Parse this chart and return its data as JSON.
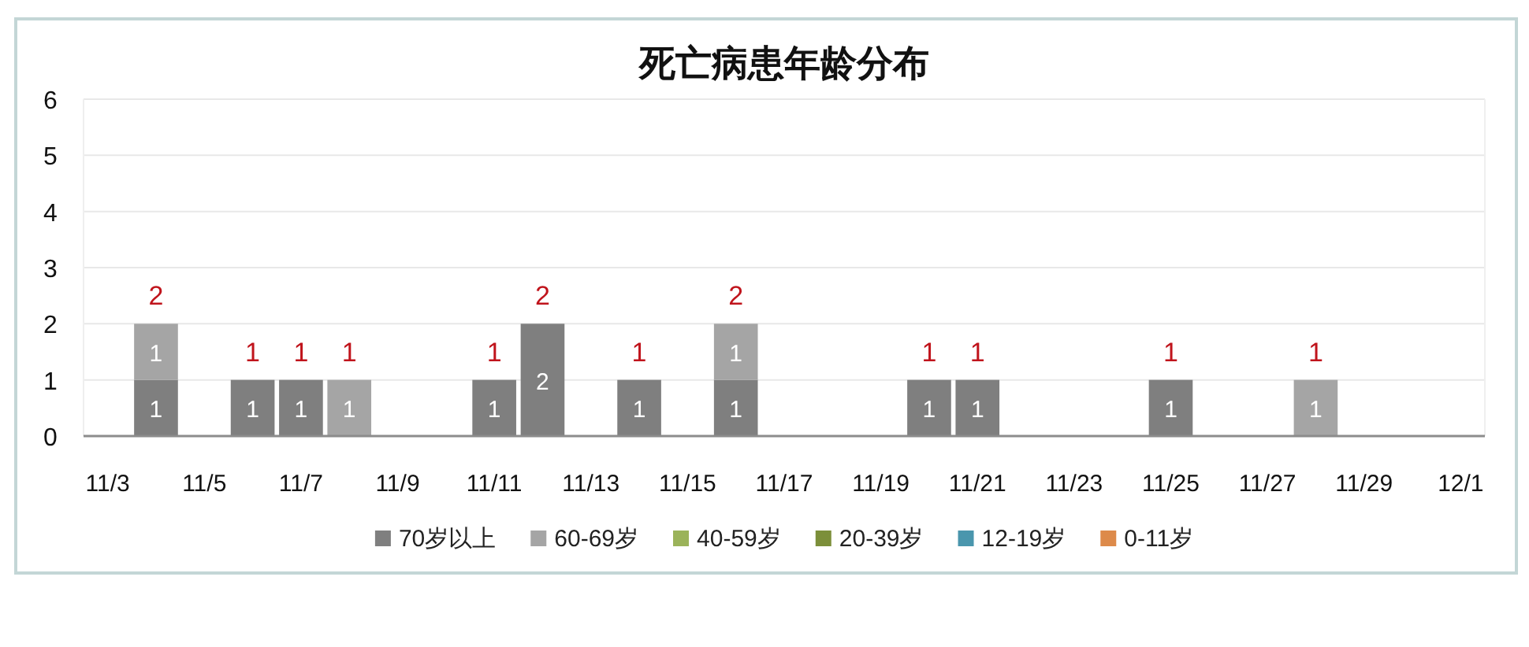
{
  "chart_data": {
    "type": "bar",
    "title": "死亡病患年龄分布",
    "categories": [
      "11/3",
      null,
      "11/5",
      null,
      "11/7",
      null,
      "11/9",
      null,
      "11/11",
      null,
      "11/13",
      null,
      "11/15",
      null,
      "11/17",
      null,
      "11/19",
      null,
      "11/21",
      null,
      "11/23",
      null,
      "11/25",
      null,
      "11/27",
      null,
      "11/29",
      null,
      "12/1"
    ],
    "series": [
      {
        "name": "70岁以上",
        "color": "#7f7f7f",
        "values": [
          null,
          1,
          null,
          1,
          1,
          null,
          null,
          null,
          1,
          2,
          null,
          1,
          null,
          1,
          null,
          null,
          null,
          1,
          1,
          null,
          null,
          null,
          1,
          null,
          null,
          null,
          null,
          null,
          null
        ]
      },
      {
        "name": "60-69岁",
        "color": "#a5a5a5",
        "values": [
          null,
          1,
          null,
          null,
          null,
          1,
          null,
          null,
          null,
          null,
          null,
          null,
          null,
          1,
          null,
          null,
          null,
          null,
          null,
          null,
          null,
          null,
          null,
          null,
          null,
          1,
          null,
          null,
          null
        ]
      },
      {
        "name": "40-59岁",
        "color": "#9bb35a",
        "values": [
          null,
          null,
          null,
          null,
          null,
          null,
          null,
          null,
          null,
          null,
          null,
          null,
          null,
          null,
          null,
          null,
          null,
          null,
          null,
          null,
          null,
          null,
          null,
          null,
          null,
          null,
          null,
          null,
          null
        ]
      },
      {
        "name": "20-39岁",
        "color": "#7c8f3a",
        "values": [
          null,
          null,
          null,
          null,
          null,
          null,
          null,
          null,
          null,
          null,
          null,
          null,
          null,
          null,
          null,
          null,
          null,
          null,
          null,
          null,
          null,
          null,
          null,
          null,
          null,
          null,
          null,
          null,
          null
        ]
      },
      {
        "name": "12-19岁",
        "color": "#4a96ad",
        "values": [
          null,
          null,
          null,
          null,
          null,
          null,
          null,
          null,
          null,
          null,
          null,
          null,
          null,
          null,
          null,
          null,
          null,
          null,
          null,
          null,
          null,
          null,
          null,
          null,
          null,
          null,
          null,
          null,
          null
        ]
      },
      {
        "name": "0-11岁",
        "color": "#dd8a4a",
        "values": [
          null,
          null,
          null,
          null,
          null,
          null,
          null,
          null,
          null,
          null,
          null,
          null,
          null,
          null,
          null,
          null,
          null,
          null,
          null,
          null,
          null,
          null,
          null,
          null,
          null,
          null,
          null,
          null,
          null
        ]
      }
    ],
    "stacked": true,
    "totals": [
      null,
      "2",
      null,
      "1",
      "1",
      "1",
      null,
      null,
      "1",
      "2",
      null,
      "1",
      null,
      "2",
      null,
      null,
      null,
      "1",
      "1",
      null,
      null,
      null,
      "1",
      null,
      null,
      "1",
      null,
      null,
      null
    ],
    "data_labels": true,
    "ylim": [
      0,
      6
    ],
    "yticks": [
      0,
      1,
      2,
      3,
      4,
      5,
      6
    ],
    "grid": "y",
    "legend": "bottom"
  }
}
